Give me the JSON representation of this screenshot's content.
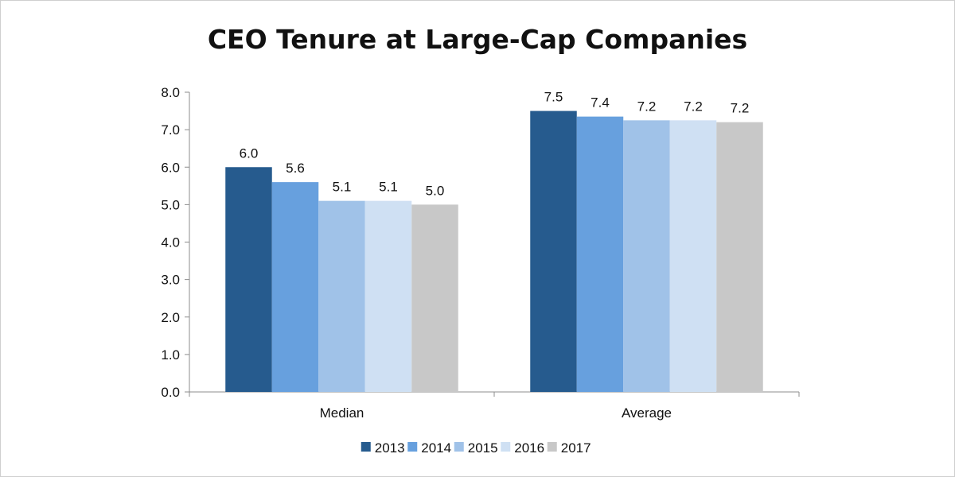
{
  "chart_data": {
    "type": "bar",
    "title": "CEO Tenure at Large-Cap Companies",
    "categories": [
      "Median",
      "Average"
    ],
    "series": [
      {
        "name": "2013",
        "color": "#265b8e",
        "values": [
          6.0,
          7.5
        ],
        "labels": [
          "6.0",
          "7.5"
        ]
      },
      {
        "name": "2014",
        "color": "#67a0de",
        "values": [
          5.6,
          7.35
        ],
        "labels": [
          "5.6",
          "7.4"
        ]
      },
      {
        "name": "2015",
        "color": "#a0c2e8",
        "values": [
          5.1,
          7.25
        ],
        "labels": [
          "5.1",
          "7.2"
        ]
      },
      {
        "name": "2016",
        "color": "#cfe0f3",
        "values": [
          5.1,
          7.25
        ],
        "labels": [
          "5.1",
          "7.2"
        ]
      },
      {
        "name": "2017",
        "color": "#c8c8c8",
        "values": [
          5.0,
          7.2
        ],
        "labels": [
          "5.0",
          "7.2"
        ]
      }
    ],
    "ylim": [
      0,
      8
    ],
    "yticks": [
      "0.0",
      "1.0",
      "2.0",
      "3.0",
      "4.0",
      "5.0",
      "6.0",
      "7.0",
      "8.0"
    ],
    "legend_position": "bottom",
    "grid": false
  }
}
